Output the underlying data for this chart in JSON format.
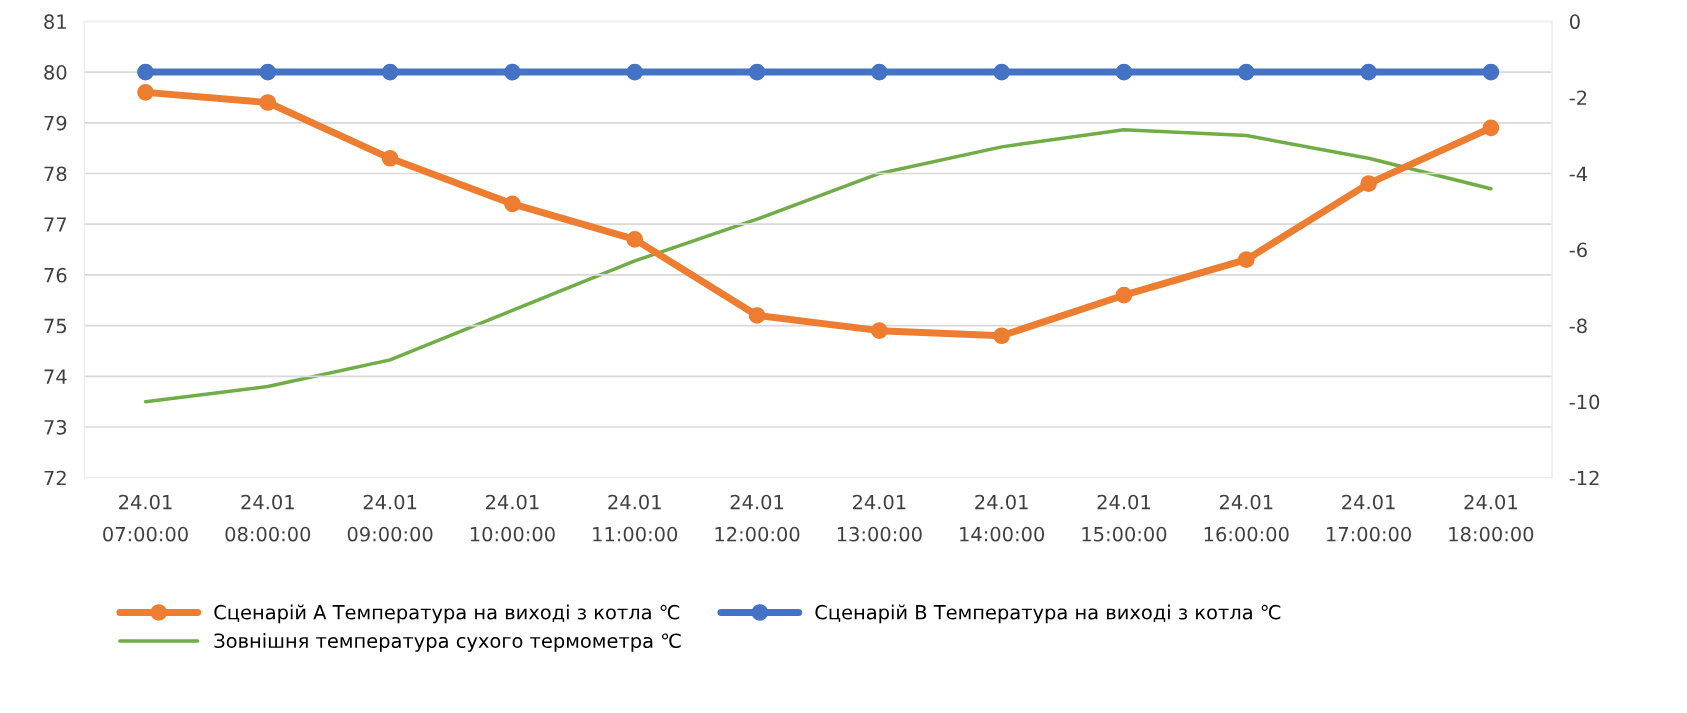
{
  "chart_data": {
    "type": "line",
    "categories": [
      "24.01\n07:00:00",
      "24.01\n08:00:00",
      "24.01\n09:00:00",
      "24.01\n10:00:00",
      "24.01\n11:00:00",
      "24.01\n12:00:00",
      "24.01\n13:00:00",
      "24.01\n14:00:00",
      "24.01\n15:00:00",
      "24.01\n16:00:00",
      "24.01\n17:00:00",
      "24.01\n18:00:00"
    ],
    "series": [
      {
        "name": "Сценарій А Температура на виході з котла ℃",
        "color": "#ed7d31",
        "marker": "circle",
        "values": [
          79.6,
          79.4,
          78.3,
          77.4,
          76.7,
          75.2,
          74.9,
          74.8,
          75.6,
          76.3,
          77.8,
          78.9
        ]
      },
      {
        "name": "Сценарій В Температура на виході з котла ℃",
        "color": "#4472c4",
        "marker": "circle",
        "values": [
          80,
          80,
          80,
          80,
          80,
          80,
          80,
          80,
          80,
          80,
          80,
          80
        ]
      },
      {
        "name": "Зовнішня температура сухого термометра ℃",
        "color": "#70ad47",
        "marker": "none",
        "axis": "y2",
        "values": [
          -10.0,
          -9.6,
          -8.9,
          -7.6,
          -6.3,
          -5.2,
          -4.0,
          -3.3,
          -2.85,
          -3.0,
          -3.6,
          -4.4
        ]
      }
    ],
    "ylim": [
      72,
      81
    ],
    "yticks": [
      72,
      73,
      74,
      75,
      76,
      77,
      78,
      79,
      80,
      81
    ],
    "y2lim": [
      -12,
      0
    ],
    "y2ticks": [
      -12,
      -10,
      -8,
      -6,
      -4,
      -2,
      0
    ],
    "grid": "y",
    "legend": "bottom"
  }
}
